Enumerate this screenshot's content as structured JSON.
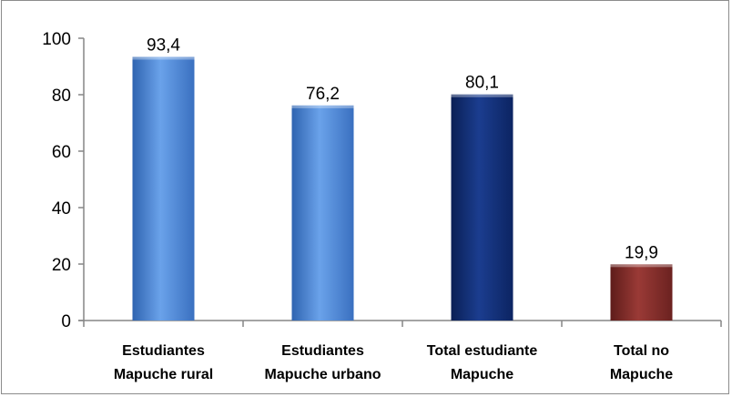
{
  "chart_data": {
    "type": "bar",
    "title": "",
    "xlabel": "",
    "ylabel": "",
    "categories": [
      [
        "Estudiantes",
        "Mapuche rural"
      ],
      [
        "Estudiantes",
        "Mapuche urbano"
      ],
      [
        "Total estudiante",
        "Mapuche"
      ],
      [
        "Total no",
        "Mapuche"
      ]
    ],
    "values": [
      93.4,
      76.2,
      80.1,
      19.9
    ],
    "data_labels": [
      "93,4",
      "76,2",
      "80,1",
      "19,9"
    ],
    "colors": [
      "#4a85d6",
      "#4a85d6",
      "#0f2a6e",
      "#7a2a28"
    ],
    "ylim": [
      0,
      100
    ],
    "yticks": [
      0,
      20,
      40,
      60,
      80,
      100
    ],
    "grid": false,
    "legend": "none"
  }
}
